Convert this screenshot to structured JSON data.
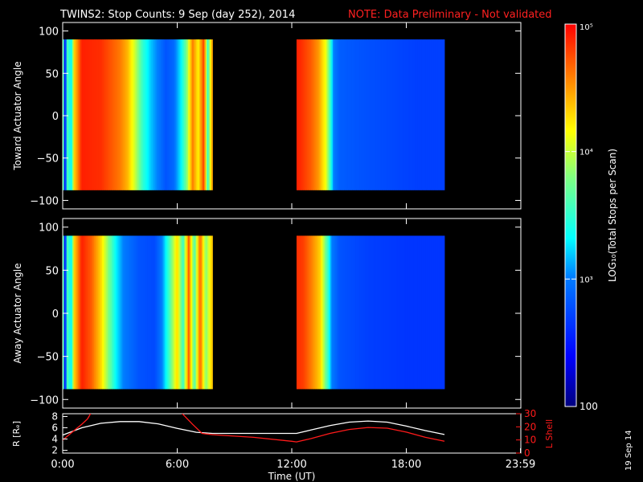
{
  "header": {
    "title": "TWINS2: Stop Counts:  9 Sep (day 252), 2014",
    "note": "NOTE: Data Preliminary - Not validated",
    "note_color": "#ff2020"
  },
  "footer": {
    "date_stamp": "19 Sep 14"
  },
  "chart_data": [
    {
      "type": "heatmap",
      "ylabel": "Toward Actuator Angle",
      "ylim": [
        -110,
        110
      ],
      "yticks": [
        "100",
        "50",
        "0",
        "−50",
        "−100"
      ],
      "xlim": [
        0,
        24
      ],
      "data_blocks": [
        {
          "x_start": 0.0,
          "x_end": 7.85,
          "y_start": -88,
          "y_end": 90
        },
        {
          "x_start": 12.25,
          "x_end": 20.0,
          "y_start": -88,
          "y_end": 90
        }
      ],
      "time_profile_log10": [
        [
          0.0,
          4.3
        ],
        [
          0.1,
          2.4
        ],
        [
          0.25,
          3.6
        ],
        [
          0.45,
          3.3
        ],
        [
          0.6,
          4.3
        ],
        [
          0.75,
          4.5
        ],
        [
          1.0,
          4.9
        ],
        [
          2.0,
          4.85
        ],
        [
          2.6,
          4.7
        ],
        [
          3.0,
          4.6
        ],
        [
          3.4,
          4.4
        ],
        [
          3.8,
          4.0
        ],
        [
          4.2,
          3.5
        ],
        [
          4.6,
          3.2
        ],
        [
          5.0,
          3.0
        ],
        [
          5.4,
          2.8
        ],
        [
          5.8,
          2.9
        ],
        [
          6.2,
          3.3
        ],
        [
          6.5,
          3.8
        ],
        [
          6.8,
          4.6
        ],
        [
          7.1,
          4.2
        ],
        [
          7.4,
          4.8
        ],
        [
          7.6,
          3.5
        ],
        [
          7.85,
          4.6
        ],
        [
          12.25,
          4.9
        ],
        [
          12.5,
          4.85
        ],
        [
          13.0,
          4.7
        ],
        [
          13.4,
          4.5
        ],
        [
          13.8,
          4.1
        ],
        [
          14.0,
          3.6
        ],
        [
          14.2,
          3.0
        ],
        [
          14.5,
          2.85
        ],
        [
          15.5,
          2.8
        ],
        [
          17.0,
          2.75
        ],
        [
          18.5,
          2.7
        ],
        [
          20.0,
          2.7
        ]
      ]
    },
    {
      "type": "heatmap",
      "ylabel": "Away Actuator Angle",
      "ylim": [
        -110,
        110
      ],
      "yticks": [
        "100",
        "50",
        "0",
        "−50",
        "−100"
      ],
      "xlim": [
        0,
        24
      ],
      "data_blocks": [
        {
          "x_start": 0.0,
          "x_end": 7.85,
          "y_start": -88,
          "y_end": 90
        },
        {
          "x_start": 12.25,
          "x_end": 20.0,
          "y_start": -88,
          "y_end": 90
        }
      ],
      "time_profile_log10": [
        [
          0.0,
          4.3
        ],
        [
          0.1,
          2.4
        ],
        [
          0.25,
          3.6
        ],
        [
          0.45,
          3.3
        ],
        [
          0.6,
          4.3
        ],
        [
          0.75,
          4.5
        ],
        [
          1.0,
          4.9
        ],
        [
          1.5,
          4.7
        ],
        [
          2.0,
          4.3
        ],
        [
          2.4,
          3.8
        ],
        [
          2.8,
          3.3
        ],
        [
          3.2,
          3.0
        ],
        [
          4.0,
          2.8
        ],
        [
          4.8,
          2.75
        ],
        [
          5.2,
          3.0
        ],
        [
          5.6,
          3.6
        ],
        [
          6.0,
          4.3
        ],
        [
          6.3,
          3.5
        ],
        [
          6.6,
          4.7
        ],
        [
          6.9,
          3.6
        ],
        [
          7.2,
          4.7
        ],
        [
          7.5,
          3.8
        ],
        [
          7.85,
          4.4
        ],
        [
          12.25,
          4.85
        ],
        [
          12.6,
          4.8
        ],
        [
          13.0,
          4.6
        ],
        [
          13.5,
          4.3
        ],
        [
          13.9,
          3.5
        ],
        [
          14.1,
          3.0
        ],
        [
          14.5,
          2.8
        ],
        [
          16.0,
          2.7
        ],
        [
          18.0,
          2.65
        ],
        [
          20.0,
          2.65
        ]
      ]
    },
    {
      "type": "line",
      "ylabel_left": "R [Rₑ]",
      "ylabel_right": "L Shell",
      "xlabel": "Time (UT)",
      "xticks": [
        "0:00",
        "6:00",
        "12:00",
        "18:00",
        "23:59"
      ],
      "xlim": [
        0,
        24
      ],
      "ylim_left": [
        1.5,
        8.5
      ],
      "yticks_left": [
        "8",
        "6",
        "4",
        "2"
      ],
      "ylim_right": [
        0,
        30
      ],
      "yticks_right": [
        "30",
        "20",
        "10",
        "0"
      ],
      "series": [
        {
          "axis": "left",
          "color": "#ffffff",
          "points": [
            [
              0,
              4.7
            ],
            [
              1,
              6.0
            ],
            [
              2,
              6.8
            ],
            [
              3,
              7.1
            ],
            [
              4,
              7.1
            ],
            [
              5,
              6.7
            ],
            [
              6,
              5.9
            ],
            [
              7,
              5.2
            ],
            [
              7.85,
              5.0
            ],
            [
              12.25,
              5.0
            ],
            [
              13,
              5.6
            ],
            [
              14,
              6.4
            ],
            [
              15,
              7.0
            ],
            [
              16,
              7.2
            ],
            [
              17,
              7.0
            ],
            [
              18,
              6.3
            ],
            [
              19,
              5.5
            ],
            [
              20,
              4.8
            ]
          ]
        },
        {
          "axis": "right",
          "color": "#ff1a1a",
          "points": [
            [
              0,
              10
            ],
            [
              0.5,
              16
            ],
            [
              1,
              22
            ],
            [
              1.3,
              26
            ],
            [
              1.5,
              31
            ],
            [
              6.2,
              31
            ],
            [
              6.8,
              22
            ],
            [
              7.3,
              15
            ],
            [
              7.85,
              14
            ],
            [
              10,
              12
            ],
            [
              12,
              9
            ],
            [
              12.25,
              8.5
            ],
            [
              13,
              11
            ],
            [
              14,
              15
            ],
            [
              15,
              18
            ],
            [
              16,
              19.5
            ],
            [
              17,
              19
            ],
            [
              18,
              16
            ],
            [
              19,
              12
            ],
            [
              20,
              9
            ]
          ]
        }
      ]
    }
  ],
  "colorbar": {
    "ylabel": "LOG₁₀(Total Stops per Scan)",
    "log_min": 2.0,
    "log_max": 5.0,
    "tick_labels": [
      {
        "log": 5,
        "label": "10⁵"
      },
      {
        "log": 4,
        "label": "10⁴"
      },
      {
        "log": 3,
        "label": "10³"
      },
      {
        "log": 2,
        "label": "100"
      }
    ]
  }
}
